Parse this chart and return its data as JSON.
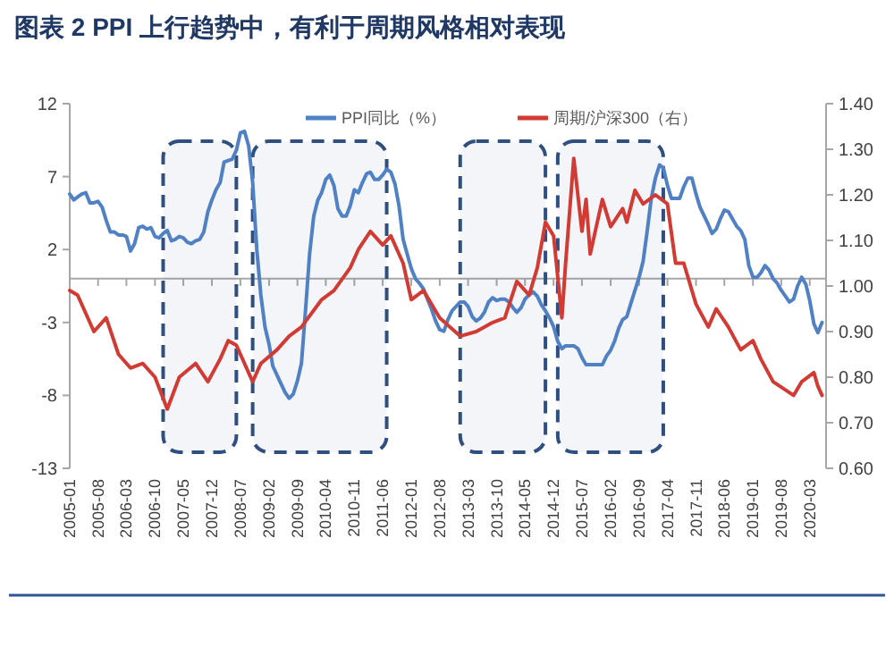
{
  "chart_data": {
    "type": "line",
    "title": "图表 2  PPI 上行趋势中，有利于周期风格相对表现",
    "legend": "top",
    "x": [
      "2005-01",
      "2005-02",
      "2005-03",
      "2005-04",
      "2005-05",
      "2005-06",
      "2005-07",
      "2005-08",
      "2005-09",
      "2005-10",
      "2005-11",
      "2005-12",
      "2006-01",
      "2006-02",
      "2006-03",
      "2006-04",
      "2006-05",
      "2006-06",
      "2006-07",
      "2006-08",
      "2006-09",
      "2006-10",
      "2006-11",
      "2006-12",
      "2007-01",
      "2007-02",
      "2007-03",
      "2007-04",
      "2007-05",
      "2007-06",
      "2007-07",
      "2007-08",
      "2007-09",
      "2007-10",
      "2007-11",
      "2007-12",
      "2008-01",
      "2008-02",
      "2008-03",
      "2008-04",
      "2008-05",
      "2008-06",
      "2008-07",
      "2008-08",
      "2008-09",
      "2008-10",
      "2008-11",
      "2008-12",
      "2009-01",
      "2009-02",
      "2009-03",
      "2009-04",
      "2009-05",
      "2009-06",
      "2009-07",
      "2009-08",
      "2009-09",
      "2009-10",
      "2009-11",
      "2009-12",
      "2010-01",
      "2010-02",
      "2010-03",
      "2010-04",
      "2010-05",
      "2010-06",
      "2010-07",
      "2010-08",
      "2010-09",
      "2010-10",
      "2010-11",
      "2010-12",
      "2011-01",
      "2011-02",
      "2011-03",
      "2011-04",
      "2011-05",
      "2011-06",
      "2011-07",
      "2011-08",
      "2011-09",
      "2011-10",
      "2011-11",
      "2011-12",
      "2012-01",
      "2012-02",
      "2012-03",
      "2012-04",
      "2012-05",
      "2012-06",
      "2012-07",
      "2012-08",
      "2012-09",
      "2012-10",
      "2012-11",
      "2012-12",
      "2013-01",
      "2013-02",
      "2013-03",
      "2013-04",
      "2013-05",
      "2013-06",
      "2013-07",
      "2013-08",
      "2013-09",
      "2013-10",
      "2013-11",
      "2013-12",
      "2014-01",
      "2014-02",
      "2014-03",
      "2014-04",
      "2014-05",
      "2014-06",
      "2014-07",
      "2014-08",
      "2014-09",
      "2014-10",
      "2014-11",
      "2014-12",
      "2015-01",
      "2015-02",
      "2015-03",
      "2015-04",
      "2015-05",
      "2015-06",
      "2015-07",
      "2015-08",
      "2015-09",
      "2015-10",
      "2015-11",
      "2015-12",
      "2016-01",
      "2016-02",
      "2016-03",
      "2016-04",
      "2016-05",
      "2016-06",
      "2016-07",
      "2016-08",
      "2016-09",
      "2016-10",
      "2016-11",
      "2016-12",
      "2017-01",
      "2017-02",
      "2017-03",
      "2017-04",
      "2017-05",
      "2017-06",
      "2017-07",
      "2017-08",
      "2017-09",
      "2017-10",
      "2017-11",
      "2017-12",
      "2018-01",
      "2018-02",
      "2018-03",
      "2018-04",
      "2018-05",
      "2018-06",
      "2018-07",
      "2018-08",
      "2018-09",
      "2018-10",
      "2018-11",
      "2018-12",
      "2019-01",
      "2019-02",
      "2019-03",
      "2019-04",
      "2019-05",
      "2019-06",
      "2019-07",
      "2019-08",
      "2019-09",
      "2019-10",
      "2019-11",
      "2019-12",
      "2020-01",
      "2020-02",
      "2020-03",
      "2020-04",
      "2020-05",
      "2020-06"
    ],
    "series": [
      {
        "name": "PPI同比（%）",
        "color": "#4f81c4",
        "values": [
          5.8,
          5.4,
          5.6,
          5.8,
          5.9,
          5.2,
          5.2,
          5.3,
          4.9,
          4.0,
          3.2,
          3.2,
          3.0,
          3.0,
          2.9,
          1.9,
          2.4,
          3.5,
          3.6,
          3.4,
          3.5,
          2.9,
          2.8,
          3.1,
          3.3,
          2.6,
          2.7,
          2.9,
          2.8,
          2.5,
          2.4,
          2.6,
          2.7,
          3.2,
          4.6,
          5.4,
          6.1,
          6.6,
          8.0,
          8.1,
          8.2,
          8.8,
          10.0,
          10.1,
          9.1,
          6.6,
          2.0,
          -1.1,
          -3.3,
          -4.5,
          -6.0,
          -6.6,
          -7.2,
          -7.8,
          -8.2,
          -7.9,
          -7.0,
          -5.8,
          -2.1,
          1.7,
          4.3,
          5.4,
          5.9,
          6.8,
          7.1,
          6.4,
          4.8,
          4.3,
          4.3,
          5.0,
          6.1,
          5.9,
          6.6,
          7.2,
          7.3,
          6.8,
          6.8,
          7.1,
          7.5,
          7.3,
          6.5,
          5.0,
          2.7,
          1.7,
          0.7,
          0.0,
          -0.3,
          -0.7,
          -1.4,
          -2.1,
          -2.9,
          -3.5,
          -3.6,
          -2.8,
          -2.2,
          -1.9,
          -1.6,
          -1.6,
          -1.9,
          -2.6,
          -2.9,
          -2.7,
          -2.3,
          -1.6,
          -1.3,
          -1.5,
          -1.4,
          -1.4,
          -1.6,
          -2.0,
          -2.3,
          -2.0,
          -1.4,
          -1.1,
          -0.9,
          -1.2,
          -1.8,
          -2.2,
          -2.7,
          -3.3,
          -4.3,
          -4.8,
          -4.6,
          -4.6,
          -4.6,
          -4.8,
          -5.4,
          -5.9,
          -5.9,
          -5.9,
          -5.9,
          -5.9,
          -5.3,
          -4.9,
          -4.3,
          -3.4,
          -2.8,
          -2.6,
          -1.7,
          -0.8,
          0.1,
          1.2,
          3.3,
          5.5,
          6.9,
          7.8,
          7.6,
          6.4,
          5.5,
          5.5,
          5.5,
          6.3,
          6.9,
          6.9,
          5.8,
          4.9,
          4.3,
          3.7,
          3.1,
          3.4,
          4.1,
          4.7,
          4.6,
          4.1,
          3.6,
          3.3,
          2.7,
          0.9,
          0.1,
          0.1,
          0.4,
          0.9,
          0.6,
          0.0,
          -0.3,
          -0.8,
          -1.2,
          -1.6,
          -1.4,
          -0.5,
          0.1,
          -0.4,
          -1.5,
          -3.1,
          -3.7,
          -3.0
        ]
      },
      {
        "name": "周期/沪深300（右）",
        "color": "#d23a34",
        "axis": "y2",
        "x": [
          "2005-01",
          "2005-03",
          "2005-07",
          "2005-10",
          "2006-01",
          "2006-04",
          "2006-07",
          "2006-10",
          "2007-01",
          "2007-04",
          "2007-08",
          "2007-11",
          "2008-02",
          "2008-04",
          "2008-06",
          "2008-10",
          "2008-12",
          "2009-04",
          "2009-07",
          "2009-10",
          "2010-03",
          "2010-06",
          "2010-10",
          "2010-12",
          "2011-03",
          "2011-06",
          "2011-08",
          "2011-11",
          "2012-01",
          "2012-04",
          "2012-08",
          "2013-01",
          "2013-05",
          "2013-09",
          "2013-12",
          "2014-03",
          "2014-06",
          "2014-08",
          "2014-10",
          "2014-12",
          "2015-02",
          "2015-03",
          "2015-05",
          "2015-07",
          "2015-08",
          "2015-09",
          "2015-12",
          "2016-02",
          "2016-05",
          "2016-06",
          "2016-08",
          "2016-10",
          "2017-01",
          "2017-04",
          "2017-06",
          "2017-08",
          "2017-11",
          "2018-02",
          "2018-04",
          "2018-07",
          "2018-10",
          "2019-01",
          "2019-03",
          "2019-06",
          "2019-11",
          "2020-01",
          "2020-04",
          "2020-05",
          "2020-06"
        ],
        "values": [
          0.99,
          0.98,
          0.9,
          0.93,
          0.85,
          0.82,
          0.83,
          0.8,
          0.73,
          0.8,
          0.83,
          0.79,
          0.84,
          0.88,
          0.87,
          0.79,
          0.83,
          0.86,
          0.89,
          0.91,
          0.97,
          0.99,
          1.04,
          1.08,
          1.12,
          1.09,
          1.11,
          1.05,
          0.97,
          0.99,
          0.93,
          0.89,
          0.9,
          0.92,
          0.93,
          1.01,
          0.98,
          1.04,
          1.14,
          1.11,
          0.93,
          1.05,
          1.28,
          1.12,
          1.19,
          1.07,
          1.19,
          1.13,
          1.17,
          1.14,
          1.21,
          1.18,
          1.2,
          1.18,
          1.05,
          1.05,
          0.96,
          0.91,
          0.95,
          0.91,
          0.86,
          0.88,
          0.84,
          0.79,
          0.76,
          0.79,
          0.81,
          0.78,
          0.76
        ]
      }
    ],
    "xlim": [
      "2005-01",
      "2020-07"
    ],
    "xticks": [
      "2005-01",
      "2005-08",
      "2006-03",
      "2006-10",
      "2007-05",
      "2007-12",
      "2008-07",
      "2009-02",
      "2009-09",
      "2010-04",
      "2010-11",
      "2011-06",
      "2012-01",
      "2012-08",
      "2013-03",
      "2013-10",
      "2014-05",
      "2014-12",
      "2015-07",
      "2016-02",
      "2016-09",
      "2017-04",
      "2017-11",
      "2018-06",
      "2019-01",
      "2019-08",
      "2020-03"
    ],
    "ylim": [
      -13,
      12
    ],
    "yticks": [
      -13,
      -8,
      -3,
      2,
      7,
      12
    ],
    "y2lim": [
      0.6,
      1.4
    ],
    "y2ticks": [
      {
        "value": 0.6,
        "label": "0.60"
      },
      {
        "value": 0.7,
        "label": "0.70"
      },
      {
        "value": 0.8,
        "label": "0.80"
      },
      {
        "value": 0.9,
        "label": "0.90"
      },
      {
        "value": 1.0,
        "label": "1.00"
      },
      {
        "value": 1.1,
        "label": "1.10"
      },
      {
        "value": 1.2,
        "label": "1.20"
      },
      {
        "value": 1.3,
        "label": "1.30"
      },
      {
        "value": 1.4,
        "label": "1.40"
      }
    ],
    "ref_lines": [
      {
        "axis": "y",
        "value": 0,
        "color": "#a6a6a6"
      }
    ],
    "bands": [
      {
        "axis": "x",
        "from": "2006-12",
        "to": "2008-06",
        "color": "#2f4f80"
      },
      {
        "axis": "x",
        "from": "2008-10",
        "to": "2011-07",
        "color": "#2f4f80"
      },
      {
        "axis": "x",
        "from": "2013-01",
        "to": "2014-10",
        "color": "#2f4f80"
      },
      {
        "axis": "x",
        "from": "2015-01",
        "to": "2017-03",
        "color": "#2f4f80"
      }
    ]
  }
}
